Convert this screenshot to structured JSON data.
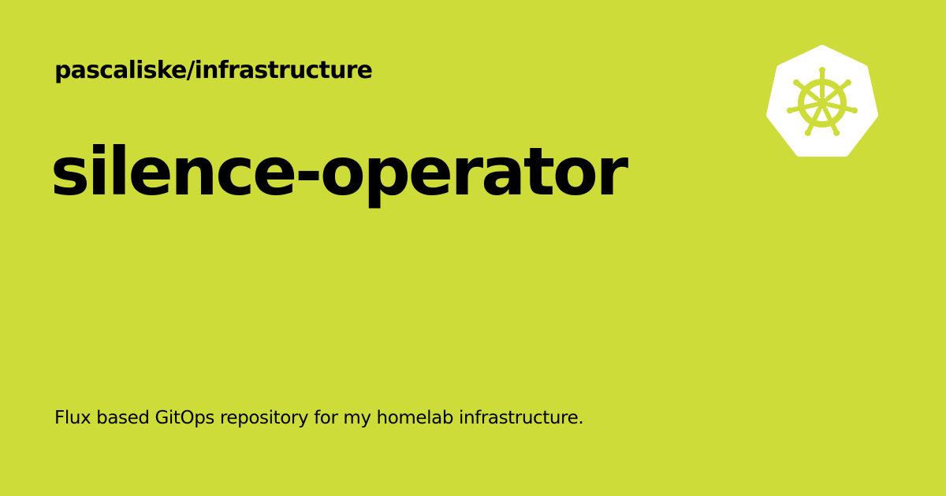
{
  "repository": "pascaliske/infrastructure",
  "title": "silence-operator",
  "description": "Flux based GitOps repository for my homelab infrastructure.",
  "logo_icon": "kubernetes-helm-wheel-icon",
  "colors": {
    "background": "#cddc39",
    "text": "#000000",
    "logo_fill": "#ffffff"
  }
}
